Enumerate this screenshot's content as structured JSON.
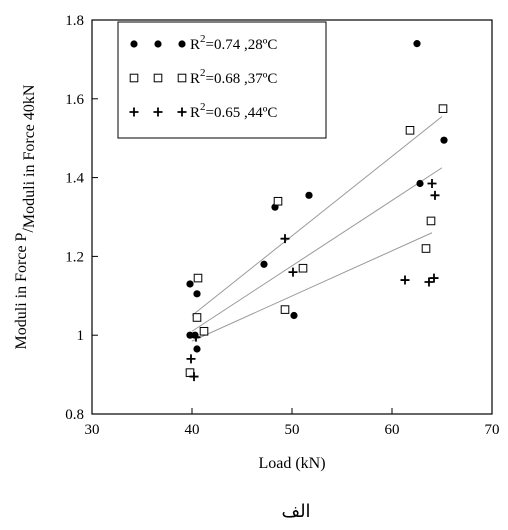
{
  "caption": "الف",
  "chart_data": {
    "type": "scatter",
    "xlabel": "Load (kN)",
    "ylabel_main": "Moduli in Force P",
    "ylabel_denominator": "Moduli in Force 40kN",
    "xlim": [
      30,
      70
    ],
    "ylim": [
      0.8,
      1.8
    ],
    "x_ticks": [
      30,
      40,
      50,
      60,
      70
    ],
    "y_ticks": [
      0.8,
      1.0,
      1.2,
      1.4,
      1.6,
      1.8
    ],
    "x_tick_labels": [
      "30",
      "40",
      "50",
      "60",
      "70"
    ],
    "y_tick_labels": [
      "0.8",
      "1",
      "1.2",
      "1.4",
      "1.6",
      "1.8"
    ],
    "grid": false,
    "legend_position": "top-left",
    "series": [
      {
        "name": "R2=0.74 ,28ºC",
        "legend_r2": "0.74",
        "legend_temp": " ,28ºC",
        "marker": "filled-circle",
        "points": [
          [
            39.8,
            1.13
          ],
          [
            39.8,
            1.0
          ],
          [
            40.3,
            1.0
          ],
          [
            40.5,
            0.965
          ],
          [
            40.5,
            1.105
          ],
          [
            47.2,
            1.18
          ],
          [
            48.3,
            1.325
          ],
          [
            50.2,
            1.05
          ],
          [
            51.7,
            1.355
          ],
          [
            62.5,
            1.74
          ],
          [
            62.8,
            1.385
          ],
          [
            65.2,
            1.495
          ]
        ],
        "trend": [
          [
            40,
            1.01
          ],
          [
            65,
            1.425
          ]
        ]
      },
      {
        "name": "R2=0.68 ,37ºC",
        "legend_r2": "0.68",
        "legend_temp": " ,37ºC",
        "marker": "open-square",
        "points": [
          [
            39.8,
            0.905
          ],
          [
            40.5,
            1.045
          ],
          [
            40.6,
            1.145
          ],
          [
            41.2,
            1.01
          ],
          [
            48.6,
            1.34
          ],
          [
            49.3,
            1.065
          ],
          [
            51.1,
            1.17
          ],
          [
            61.8,
            1.52
          ],
          [
            63.4,
            1.22
          ],
          [
            63.9,
            1.29
          ],
          [
            65.1,
            1.575
          ]
        ],
        "trend": [
          [
            40,
            1.05
          ],
          [
            65,
            1.555
          ]
        ]
      },
      {
        "name": "R2=0.65 ,44ºC",
        "legend_r2": "0.65",
        "legend_temp": " ,44ºC",
        "marker": "plus",
        "points": [
          [
            39.9,
            0.94
          ],
          [
            40.2,
            0.895
          ],
          [
            40.4,
            0.995
          ],
          [
            49.3,
            1.245
          ],
          [
            50.1,
            1.16
          ],
          [
            61.3,
            1.14
          ],
          [
            63.7,
            1.135
          ],
          [
            64.0,
            1.385
          ],
          [
            64.2,
            1.145
          ],
          [
            64.3,
            1.355
          ]
        ],
        "trend": [
          [
            40,
            0.985
          ],
          [
            64,
            1.26
          ]
        ]
      }
    ]
  }
}
